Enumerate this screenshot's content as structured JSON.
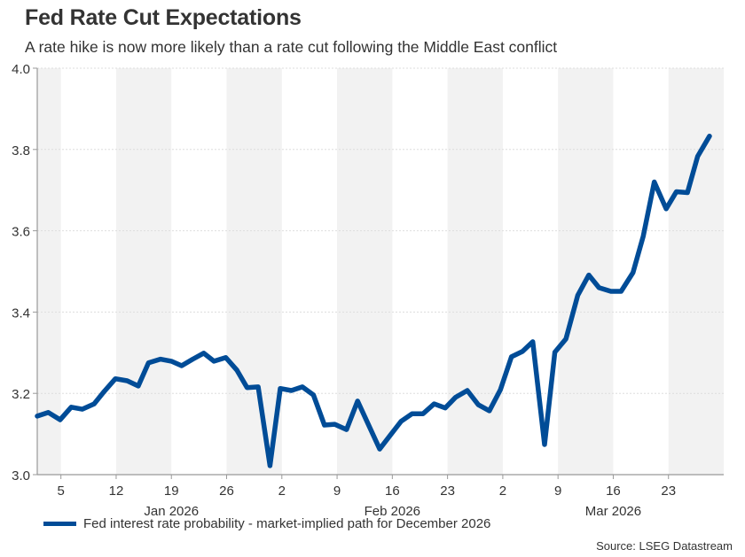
{
  "header": {
    "title": "Fed Rate Cut Expectations",
    "subtitle": "A rate hike is now more likely than a rate cut following the Middle East conflict"
  },
  "legend": {
    "label": "Fed interest rate probability - market-implied path for December 2026"
  },
  "source": "Source: LSEG Datastream",
  "colors": {
    "line": "#004c97",
    "band": "#f2f2f2",
    "axis": "#999999",
    "grid": "#dddddd",
    "text": "#333333"
  },
  "chart_data": {
    "type": "line",
    "title": "Fed Rate Cut Expectations",
    "subtitle": "A rate hike is now more likely than a rate cut following the Middle East conflict",
    "xlabel": "",
    "ylabel": "",
    "ylim": [
      3.0,
      4.0
    ],
    "yticks": [
      3.0,
      3.2,
      3.4,
      3.6,
      3.8,
      4.0
    ],
    "ytick_labels": [
      "3.0",
      "3.2",
      "3.4",
      "3.6",
      "3.8",
      "4.0"
    ],
    "xlim_days": [
      0,
      87
    ],
    "x_unit": "days since 2 Jan 2026",
    "xticks": [
      {
        "day": 3,
        "label": "5"
      },
      {
        "day": 10,
        "label": "12"
      },
      {
        "day": 17,
        "label": "19"
      },
      {
        "day": 24,
        "label": "26"
      },
      {
        "day": 31,
        "label": "2"
      },
      {
        "day": 38,
        "label": "9"
      },
      {
        "day": 45,
        "label": "16"
      },
      {
        "day": 52,
        "label": "23"
      },
      {
        "day": 59,
        "label": "2"
      },
      {
        "day": 66,
        "label": "9"
      },
      {
        "day": 73,
        "label": "16"
      },
      {
        "day": 80,
        "label": "23"
      }
    ],
    "month_labels": [
      {
        "day": 17,
        "label": "Jan 2026"
      },
      {
        "day": 45,
        "label": "Feb 2026"
      },
      {
        "day": 73,
        "label": "Mar 2026"
      }
    ],
    "shaded_bands_days": [
      [
        0,
        3
      ],
      [
        10,
        17
      ],
      [
        24,
        31
      ],
      [
        38,
        45
      ],
      [
        52,
        59
      ],
      [
        66,
        73
      ],
      [
        80,
        87
      ]
    ],
    "grid": true,
    "legend_position": "bottom-left",
    "series": [
      {
        "name": "Fed interest rate probability - market-implied path for December 2026",
        "x": [
          0,
          1.4,
          2.9,
          4.3,
          5.7,
          7.2,
          8.5,
          9.9,
          11.4,
          12.8,
          14.1,
          15.6,
          17.0,
          18.3,
          19.7,
          21.1,
          22.4,
          23.9,
          25.3,
          26.6,
          28.0,
          29.5,
          30.8,
          32.2,
          33.6,
          35.0,
          36.4,
          37.7,
          39.2,
          40.6,
          41.9,
          43.4,
          44.7,
          46.1,
          47.5,
          48.9,
          50.3,
          51.7,
          53.0,
          54.5,
          55.9,
          57.3,
          58.7,
          60.1,
          61.5,
          62.8,
          64.3,
          65.6,
          67.0,
          68.5,
          69.9,
          71.2,
          72.7,
          74.0,
          75.5,
          76.8,
          78.2,
          79.7,
          81.0,
          82.4,
          83.7,
          85.2
        ],
        "values": [
          3.144,
          3.153,
          3.135,
          3.166,
          3.161,
          3.174,
          3.205,
          3.236,
          3.231,
          3.218,
          3.275,
          3.284,
          3.279,
          3.268,
          3.284,
          3.299,
          3.279,
          3.288,
          3.257,
          3.214,
          3.216,
          3.022,
          3.212,
          3.207,
          3.216,
          3.196,
          3.122,
          3.124,
          3.111,
          3.181,
          3.126,
          3.063,
          3.096,
          3.131,
          3.15,
          3.15,
          3.174,
          3.164,
          3.19,
          3.207,
          3.172,
          3.157,
          3.209,
          3.29,
          3.303,
          3.327,
          3.074,
          3.301,
          3.334,
          3.441,
          3.491,
          3.46,
          3.451,
          3.451,
          3.497,
          3.587,
          3.72,
          3.654,
          3.696,
          3.694,
          3.783,
          3.833
        ]
      }
    ]
  }
}
